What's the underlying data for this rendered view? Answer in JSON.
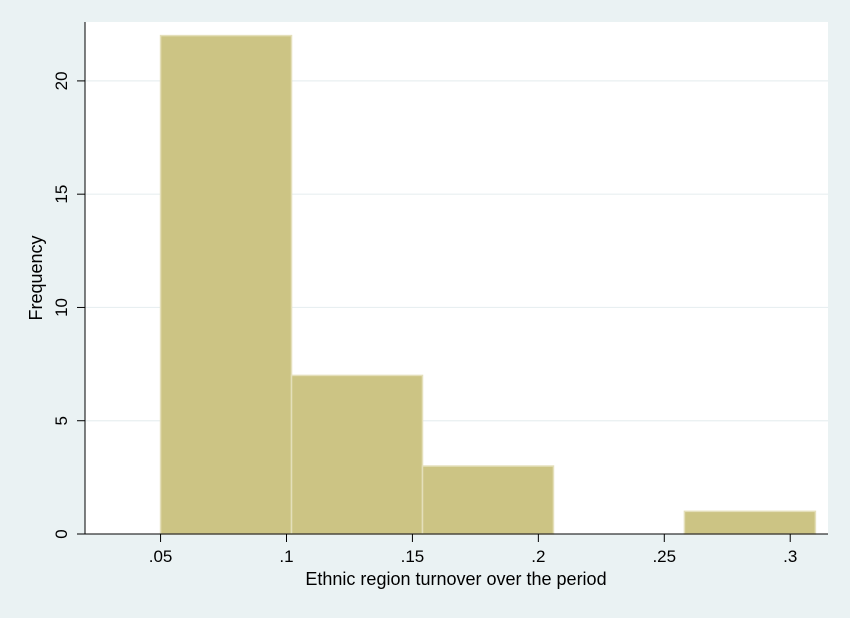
{
  "chart_data": {
    "type": "bar",
    "subtype": "histogram",
    "xlabel": "Ethnic region turnover over the period",
    "ylabel": "Frequency",
    "bins": [
      {
        "start": 0.05,
        "end": 0.102,
        "value": 22
      },
      {
        "start": 0.102,
        "end": 0.154,
        "value": 7
      },
      {
        "start": 0.154,
        "end": 0.206,
        "value": 3
      },
      {
        "start": 0.206,
        "end": 0.258,
        "value": 0
      },
      {
        "start": 0.258,
        "end": 0.31,
        "value": 1
      }
    ],
    "xlim": [
      0.02,
      0.315
    ],
    "ylim": [
      0,
      22.6
    ],
    "x_ticks": [
      {
        "value": 0.05,
        "label": ".05"
      },
      {
        "value": 0.1,
        "label": ".1"
      },
      {
        "value": 0.15,
        "label": ".15"
      },
      {
        "value": 0.2,
        "label": ".2"
      },
      {
        "value": 0.25,
        "label": ".25"
      },
      {
        "value": 0.3,
        "label": ".3"
      }
    ],
    "y_ticks": [
      {
        "value": 0,
        "label": "0"
      },
      {
        "value": 5,
        "label": "5"
      },
      {
        "value": 10,
        "label": "10"
      },
      {
        "value": 15,
        "label": "15"
      },
      {
        "value": 20,
        "label": "20"
      }
    ],
    "grid": true,
    "colors": {
      "background": "#eaf2f3",
      "plot_background": "#ffffff",
      "bar_fill": "#ccc484",
      "bar_edge": "#e4dfba",
      "grid": "#e8eff1",
      "axis": "#000000"
    }
  }
}
